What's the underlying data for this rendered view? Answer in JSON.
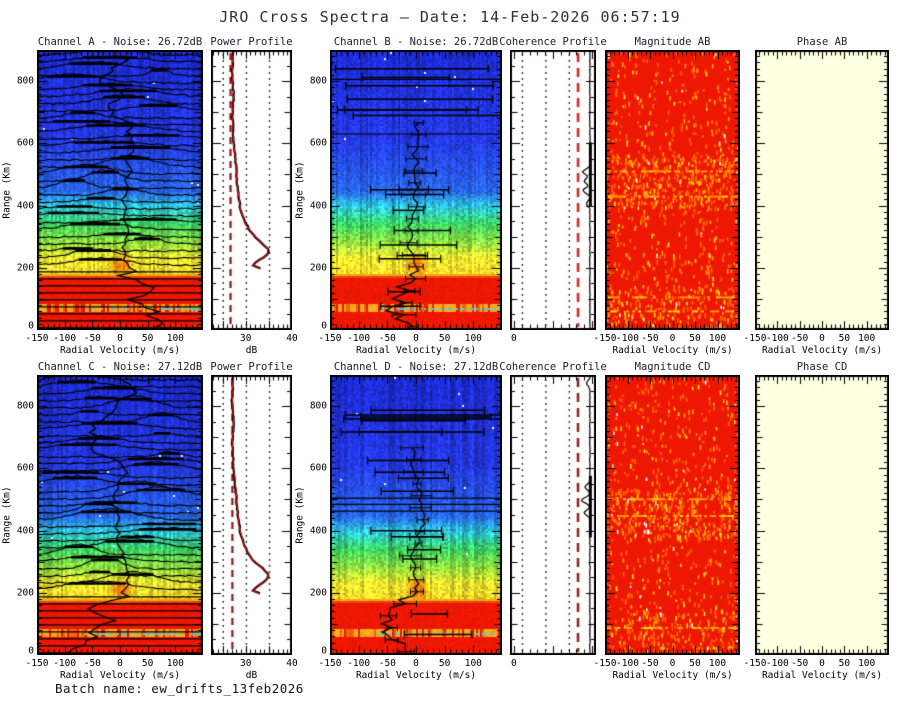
{
  "title": "JRO Cross Spectra — Date: 14-Feb-2026 06:57:19",
  "footer": "Batch name: ew_drifts_13feb2026",
  "colors": {
    "background": "#ffffff",
    "title_text": "#2e2e3e",
    "plot_text": "#000000",
    "spectrogram_red": "#ee1802",
    "phase_bg": "#ffffe2",
    "noise_line": "#8b1818",
    "profile_line": "#cc1111",
    "speckle_orange": "#ff6c00",
    "speckle_amber": "#ffa500",
    "speckle_yellow": "#ffe000",
    "colormap": [
      [
        0.0,
        "#1c2acd"
      ],
      [
        0.32,
        "#2438e0"
      ],
      [
        0.5,
        "#2864e8"
      ],
      [
        0.555,
        "#2dc3dc"
      ],
      [
        0.62,
        "#3cd05f"
      ],
      [
        0.69,
        "#96de3c"
      ],
      [
        0.74,
        "#eee830"
      ],
      [
        0.795,
        "#f8d728"
      ],
      [
        0.802,
        "#f09614"
      ],
      [
        0.81,
        "#ee1802"
      ],
      [
        1.0,
        "#ee1802"
      ]
    ]
  },
  "profile_curve": [
    [
      0,
      27.3
    ],
    [
      0.08,
      27.05
    ],
    [
      0.16,
      27.4
    ],
    [
      0.24,
      27.15
    ],
    [
      0.32,
      27.35
    ],
    [
      0.42,
      27.9
    ],
    [
      0.5,
      28.3
    ],
    [
      0.56,
      28.8
    ],
    [
      0.61,
      29.7
    ],
    [
      0.655,
      31.2
    ],
    [
      0.69,
      33.6
    ],
    [
      0.715,
      35.0
    ],
    [
      0.735,
      34.5
    ],
    [
      0.755,
      32.4
    ],
    [
      0.77,
      31.6
    ],
    [
      0.779,
      32.0
    ],
    [
      0.787,
      40.8
    ]
  ],
  "chart_data": [
    {
      "id": "channel-a",
      "row": 0,
      "col": "spec_l",
      "type": "spectra-heatmap",
      "title": "Channel A - Noise: 26.72dB",
      "noise_db": 26.72,
      "xlabel": "Radial Velocity (m/s)",
      "ylabel": "Range (Km)",
      "xlim": [
        -150,
        150
      ],
      "xticks": [
        -150,
        -100,
        -50,
        0,
        50,
        100
      ],
      "ylim": [
        0,
        900
      ],
      "yticks": [
        0,
        200,
        400,
        600,
        800
      ],
      "seed": 11,
      "note": "Doppler spectra per range gate: blue noise above ~500 km, green-yellow 200-350 km, saturated red below ~170 km, black spectral trace on each gate and black drift-velocity profile near 0 m/s"
    },
    {
      "id": "power-profile-top",
      "row": 0,
      "col": "profile",
      "type": "power-profile",
      "title": "Power Profile",
      "xlabel": "dB",
      "xlim": [
        22.5,
        40
      ],
      "xticks": [
        30,
        40
      ],
      "ylim": [
        0,
        900
      ],
      "yticks": [],
      "noise_db": 26.72,
      "gridlines_db": [
        25,
        30,
        35
      ],
      "seed": 21,
      "note": "power ~27 dB aloft, rising below 300 km to ~35 dB peak near 220 km, off-scale >40 dB below 170 km; dashed dark-red line = noise level"
    },
    {
      "id": "channel-b",
      "row": 0,
      "col": "spec_r",
      "type": "errorbar-heatmap",
      "title": "Channel B - Noise: 26.72dB",
      "noise_db": 26.72,
      "xlabel": "Radial Velocity (m/s)",
      "ylabel": "Range (Km)",
      "xlim": [
        -150,
        150
      ],
      "xticks": [
        -150,
        -100,
        -50,
        0,
        50,
        100
      ],
      "ylim": [
        0,
        900
      ],
      "yticks": [
        0,
        200,
        400,
        600,
        800
      ],
      "seed": 31,
      "full_lines": [
        0.105,
        0.3
      ],
      "note": "same colour field as Channel A with velocity estimates and horizontal error bars"
    },
    {
      "id": "coherence-profile-top",
      "row": 0,
      "col": "coh",
      "type": "coherence-profile",
      "title": "Coherence Profile",
      "xlim": [
        -0.05,
        1.05
      ],
      "xticks": [
        0
      ],
      "ylim": [
        0,
        900
      ],
      "yticks": [],
      "gridlines": [
        0.1,
        0.4,
        0.7
      ],
      "threshold": 0.82,
      "dash_color": "#e02828",
      "spikes": [
        [
          0.435,
          0.88
        ],
        [
          0.468,
          0.9
        ],
        [
          0.502,
          0.885
        ],
        [
          0.548,
          0.93
        ]
      ],
      "thick": [
        0.33,
        0.56
      ],
      "seed": 41,
      "note": "coherence ~0.97 at all ranges with small dips near 450-500 km; red dashed threshold"
    },
    {
      "id": "magnitude-ab",
      "row": 0,
      "col": "mag",
      "type": "magnitude-heatmap",
      "title": "Magnitude AB",
      "xlabel": "Radial Velocity (m/s)",
      "xlim": [
        -150,
        150
      ],
      "xticks": [
        -150,
        -100,
        -50,
        0,
        50,
        100
      ],
      "ylim": [
        0,
        900
      ],
      "yticks": [],
      "band": [
        0.37,
        0.56
      ],
      "hot_rows": [
        0.43,
        0.52,
        0.88,
        0.93
      ],
      "seed": 51,
      "note": "saturated red cross-spectral magnitude with orange/yellow speckle, denser near 450-550 km and at low ranges"
    },
    {
      "id": "phase-ab",
      "row": 0,
      "col": "phase",
      "type": "phase-heatmap",
      "title": "Phase AB",
      "xlabel": "Radial Velocity (m/s)",
      "xlim": [
        -150,
        150
      ],
      "xticks": [
        -150,
        -100,
        -50,
        0,
        50,
        100
      ],
      "ylim": [
        0,
        900
      ],
      "yticks": [],
      "seed": 61,
      "note": "uniform cream panel (phase ~constant)"
    },
    {
      "id": "channel-c",
      "row": 1,
      "col": "spec_l",
      "type": "spectra-heatmap",
      "title": "Channel C - Noise: 27.12dB",
      "noise_db": 27.12,
      "xlabel": "Radial Velocity (m/s)",
      "ylabel": "Range (Km)",
      "xlim": [
        -150,
        150
      ],
      "xticks": [
        -150,
        -100,
        -50,
        0,
        50,
        100
      ],
      "ylim": [
        0,
        900
      ],
      "yticks": [
        0,
        200,
        400,
        600,
        800
      ],
      "seed": 12,
      "note": "as Channel A"
    },
    {
      "id": "power-profile-bottom",
      "row": 1,
      "col": "profile",
      "type": "power-profile",
      "title": "Power Profile",
      "xlabel": "dB",
      "xlim": [
        22.5,
        40
      ],
      "xticks": [
        30,
        40
      ],
      "ylim": [
        0,
        900
      ],
      "yticks": [],
      "noise_db": 27.12,
      "gridlines_db": [
        25,
        30,
        35
      ],
      "seed": 22,
      "note": "as top power profile, noise 27.12 dB"
    },
    {
      "id": "channel-d",
      "row": 1,
      "col": "spec_r",
      "type": "errorbar-heatmap",
      "title": "Channel D - Noise: 27.12dB",
      "noise_db": 27.12,
      "xlabel": "Radial Velocity (m/s)",
      "ylabel": "Range (Km)",
      "xlim": [
        -150,
        150
      ],
      "xticks": [
        -150,
        -100,
        -50,
        0,
        50,
        100
      ],
      "ylim": [
        0,
        900
      ],
      "yticks": [
        0,
        200,
        400,
        600,
        800
      ],
      "seed": 32,
      "full_lines": [
        0.44,
        0.462,
        0.486
      ],
      "note": "as Channel B; several full-width gates near 450-500 km"
    },
    {
      "id": "coherence-profile-bottom",
      "row": 1,
      "col": "coh",
      "type": "coherence-profile",
      "title": "Coherence Profile",
      "xlim": [
        -0.05,
        1.05
      ],
      "xticks": [
        0
      ],
      "ylim": [
        0,
        900
      ],
      "yticks": [],
      "gridlines": [
        0.1,
        0.4,
        0.7
      ],
      "threshold": 0.82,
      "dash_color": "#992222",
      "spikes": [
        [
          0.03,
          0.93
        ],
        [
          0.4,
          0.91
        ],
        [
          0.447,
          0.862
        ],
        [
          0.492,
          0.9
        ]
      ],
      "thick": [
        0.36,
        0.58
      ],
      "seed": 42,
      "note": "as top coherence profile"
    },
    {
      "id": "magnitude-cd",
      "row": 1,
      "col": "mag",
      "type": "magnitude-heatmap",
      "title": "Magnitude CD",
      "xlabel": "Radial Velocity (m/s)",
      "xlim": [
        -150,
        150
      ],
      "xticks": [
        -150,
        -100,
        -50,
        0,
        50,
        100
      ],
      "ylim": [
        0,
        900
      ],
      "yticks": [],
      "band": [
        0.4,
        0.58
      ],
      "hot_rows": [
        0.44,
        0.5,
        0.9
      ],
      "seed": 52,
      "note": "as Magnitude AB"
    },
    {
      "id": "phase-cd",
      "row": 1,
      "col": "phase",
      "type": "phase-heatmap",
      "title": "Phase CD",
      "xlabel": "Radial Velocity (m/s)",
      "xlim": [
        -150,
        150
      ],
      "xticks": [
        -150,
        -100,
        -50,
        0,
        50,
        100
      ],
      "ylim": [
        0,
        900
      ],
      "yticks": [],
      "seed": 62,
      "note": "uniform cream panel"
    }
  ]
}
